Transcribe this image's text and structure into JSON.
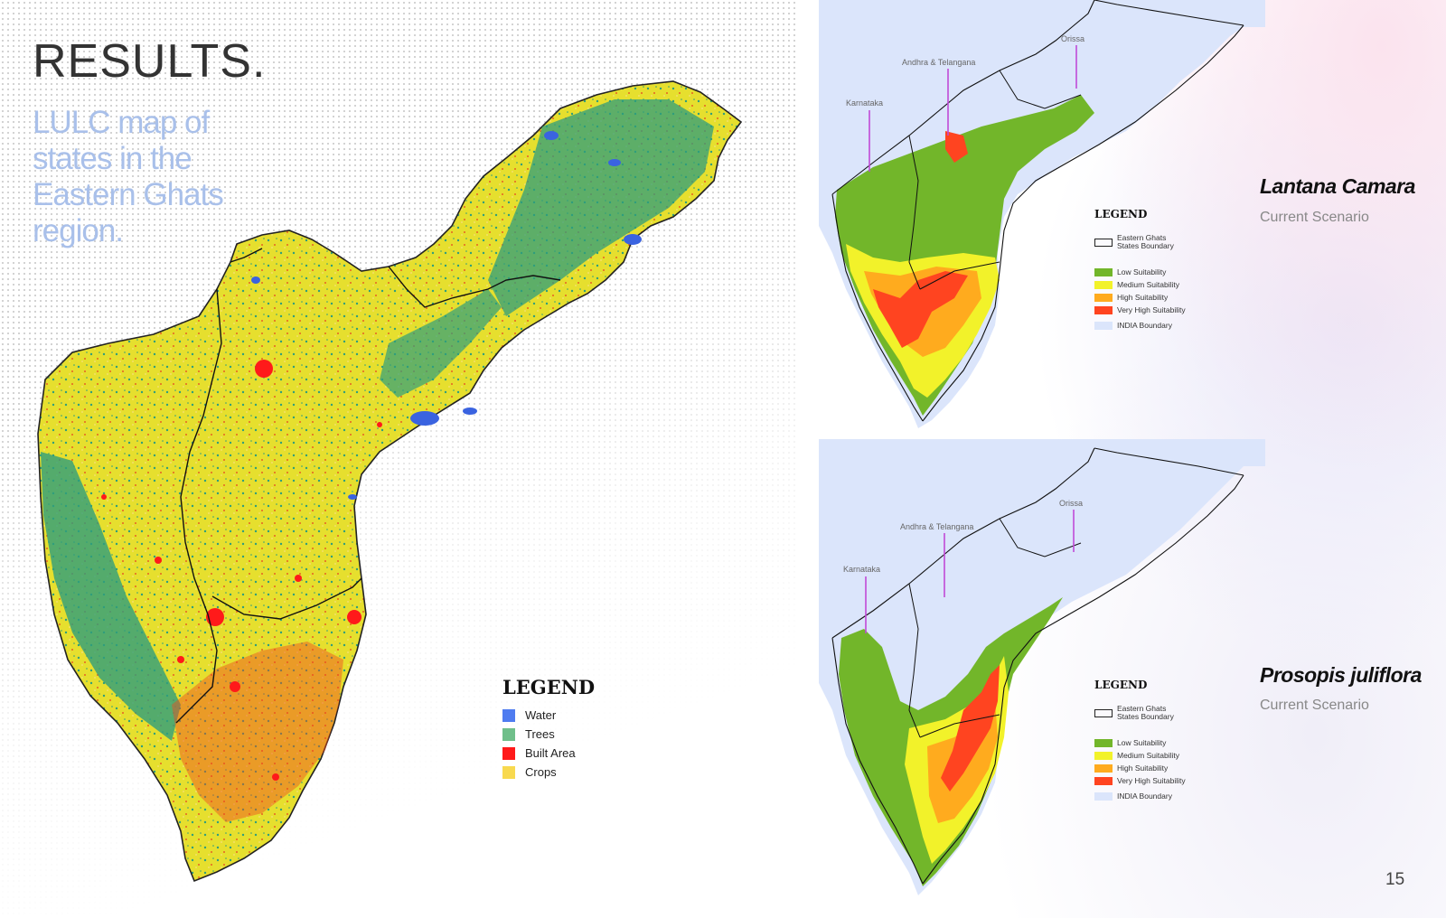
{
  "header": {
    "title": "RESULTS.",
    "subtitle": "LULC map of states in the Eastern Ghats region."
  },
  "lulc_legend": {
    "title": "LEGEND",
    "items": [
      {
        "label": "Water",
        "color": "#4f7cf0"
      },
      {
        "label": "Trees",
        "color": "#6fbf8a"
      },
      {
        "label": "Built Area",
        "color": "#ff1a1a"
      },
      {
        "label": "Crops",
        "color": "#f8d94f"
      }
    ]
  },
  "colors": {
    "lulc_crops": "#e8e030",
    "lulc_trees": "#2f9e7c",
    "low": "#72b62a",
    "medium": "#f2f22a",
    "high": "#ffab1e",
    "very_high": "#ff4420",
    "india": "#dbe5fb"
  },
  "suitability_maps": [
    {
      "species": "Lantana Camara",
      "scenario": "Current Scenario",
      "state_labels": [
        "Karnataka",
        "Andhra & Telangana",
        "Orissa"
      ]
    },
    {
      "species": "Prosopis juliflora",
      "scenario": "Current Scenario",
      "state_labels": [
        "Karnataka",
        "Andhra & Telangana",
        "Orissa"
      ]
    }
  ],
  "suitability_legend": {
    "title": "LEGEND",
    "boundary": "Eastern Ghats States Boundary",
    "items": [
      {
        "label": "Low Suitability",
        "color": "#72b62a"
      },
      {
        "label": "Medium Suitability",
        "color": "#f2f22a"
      },
      {
        "label": "High Suitability",
        "color": "#ffab1e"
      },
      {
        "label": "Very High Suitability",
        "color": "#ff4420"
      },
      {
        "label": "INDIA Boundary",
        "color": "#dbe5fb"
      }
    ]
  },
  "page_number": "15"
}
